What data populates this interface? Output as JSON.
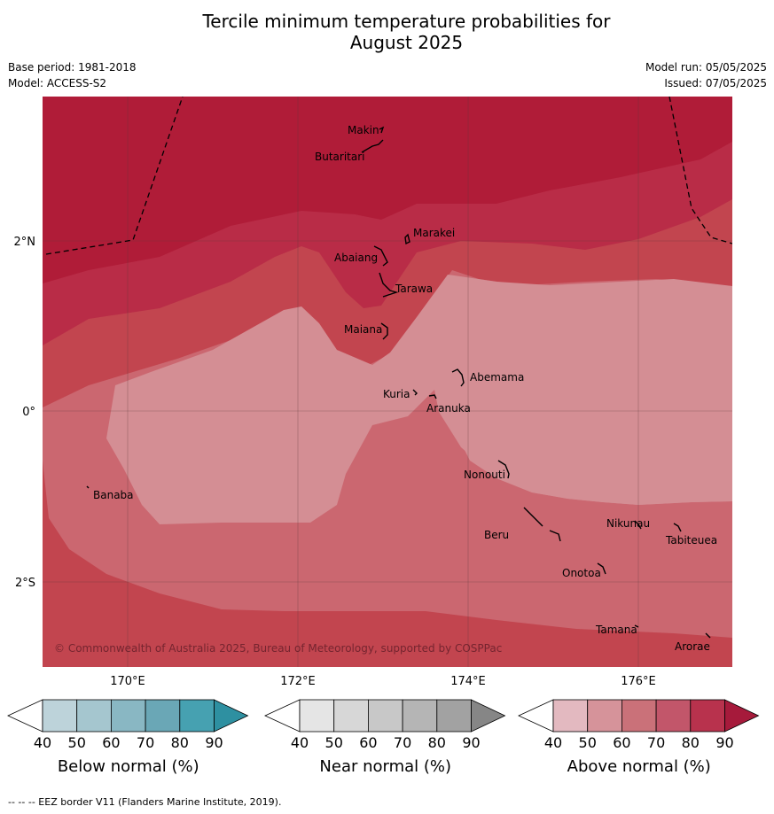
{
  "title_line1": "Tercile minimum temperature probabilities for",
  "title_line2": "August 2025",
  "meta_left": {
    "base_period": "Base period: 1981-2018",
    "model": "Model: ACCESS-S2"
  },
  "meta_right": {
    "model_run": "Model run: 05/05/2025",
    "issued": "Issued: 07/05/2025"
  },
  "map": {
    "lon_ticks": [
      "170°E",
      "172°E",
      "174°E",
      "176°E"
    ],
    "lat_ticks": [
      "2°N",
      "0°",
      "2°S"
    ],
    "islands": [
      "Makin",
      "Butaritari",
      "Marakei",
      "Abaiang",
      "Tarawa",
      "Maiana",
      "Abemama",
      "Kuria",
      "Aranuka",
      "Nonouti",
      "Banaba",
      "Beru",
      "Nikunau",
      "Tabiteuea",
      "Onotoa",
      "Tamana",
      "Arorae"
    ],
    "copyright": "© Commonwealth of Australia 2025, Bureau of Meteorology, supported by COSPPac",
    "colors": {
      "band90": "#b01c38",
      "band80": "#b92c47",
      "band70": "#c2454f",
      "band60": "#cb6770",
      "band50": "#d48e94",
      "coast": "#000000"
    }
  },
  "colorbars": [
    {
      "title": "Below normal (%)",
      "ticks": [
        "40",
        "50",
        "60",
        "70",
        "80",
        "90"
      ],
      "colors": [
        "#ffffff",
        "#bdd3da",
        "#a5c6cf",
        "#89b7c3",
        "#6aa7b6",
        "#46a1b1",
        "#2e90a1"
      ]
    },
    {
      "title": "Near normal (%)",
      "ticks": [
        "40",
        "50",
        "60",
        "70",
        "80",
        "90"
      ],
      "colors": [
        "#ffffff",
        "#e5e5e5",
        "#d7d7d7",
        "#c8c8c8",
        "#b5b5b5",
        "#a2a2a2",
        "#868686"
      ]
    },
    {
      "title": "Above normal (%)",
      "ticks": [
        "40",
        "50",
        "60",
        "70",
        "80",
        "90"
      ],
      "colors": [
        "#ffffff",
        "#e3b9c0",
        "#d6939a",
        "#ca7179",
        "#c2566a",
        "#b8324d",
        "#a61a3b"
      ]
    }
  ],
  "footer": "--  --  -- EEZ border V11 (Flanders Marine Institute, 2019)."
}
